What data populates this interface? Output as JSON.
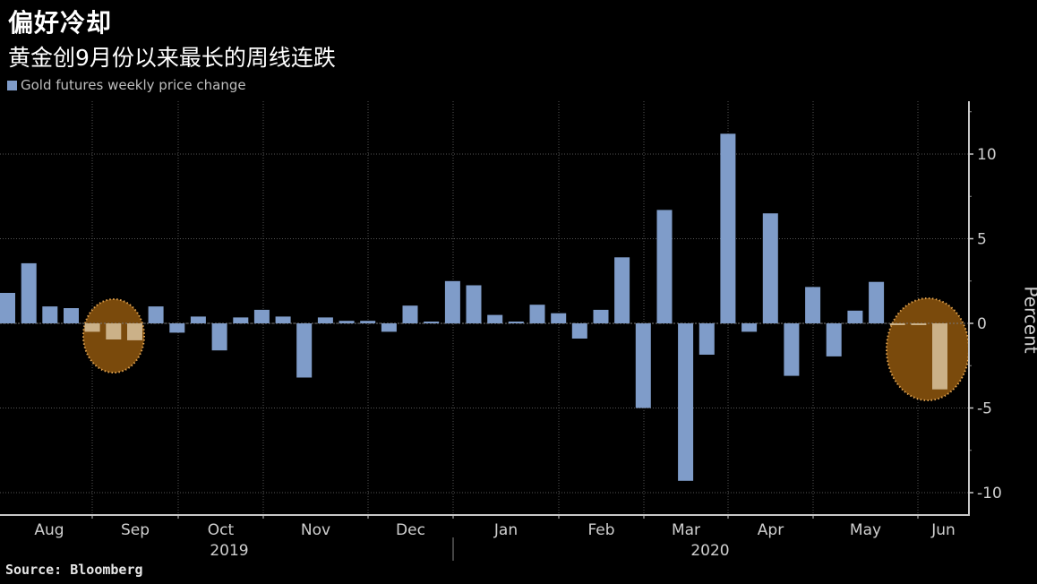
{
  "header": {
    "title": "偏好冷却",
    "subtitle": "黄金创9月份以来最长的周线连跌"
  },
  "legend": {
    "label": "Gold futures weekly price change",
    "color": "#7f9cc9"
  },
  "footer": {
    "source": "Source: Bloomberg"
  },
  "colors": {
    "bar": "#7f9cc9",
    "highlight_bar": "#cbb188",
    "highlight_fill": "#7a4a0c",
    "highlight_border": "#e0a24e",
    "grid": "#555555",
    "axis": "#c8c8c8",
    "text": "#d0d0d0"
  },
  "chart_data": {
    "type": "bar",
    "title": "偏好冷却",
    "subtitle": "黄金创9月份以来最长的周线连跌",
    "xlabel": "",
    "ylabel": "Percent",
    "ylim": [
      -11,
      13
    ],
    "yticks": [
      -10,
      -5,
      0,
      5,
      10
    ],
    "grid": true,
    "legend_position": "top-left",
    "series": [
      {
        "name": "Gold futures weekly price change",
        "values": [
          1.8,
          3.55,
          1.0,
          0.9,
          -0.5,
          -0.95,
          -1.0,
          1.0,
          -0.55,
          0.4,
          -1.6,
          0.35,
          0.8,
          0.4,
          -3.2,
          0.35,
          0.15,
          0.15,
          -0.5,
          1.05,
          0.05,
          2.5,
          2.25,
          0.5,
          0.05,
          1.1,
          0.6,
          -0.9,
          0.8,
          3.9,
          -5.0,
          6.7,
          -9.3,
          -1.85,
          11.2,
          -0.5,
          6.5,
          -3.1,
          2.15,
          -1.95,
          0.75,
          2.45,
          -0.1,
          -0.1,
          -3.9
        ]
      }
    ],
    "highlighted_indices": [
      4,
      5,
      6,
      42,
      43,
      44
    ],
    "x_month_labels": [
      "Aug",
      "Sep",
      "Oct",
      "Nov",
      "Dec",
      "Jan",
      "Feb",
      "Mar",
      "Apr",
      "May",
      "Jun"
    ],
    "x_year_labels": [
      "2019",
      "2020"
    ],
    "annotations": [
      "Circled: 3-week decline in Sep 2019",
      "Circled: 3-week decline in Jun 2020 (longest weekly losing streak since Sep)"
    ]
  },
  "axis": {
    "y_ticks": [
      "10",
      "5",
      "0",
      "-5",
      "-10"
    ],
    "y_label": "Percent",
    "months": [
      "Aug",
      "Sep",
      "Oct",
      "Nov",
      "Dec",
      "Jan",
      "Feb",
      "Mar",
      "Apr",
      "May",
      "Jun"
    ],
    "years": [
      "2019",
      "2020"
    ]
  }
}
